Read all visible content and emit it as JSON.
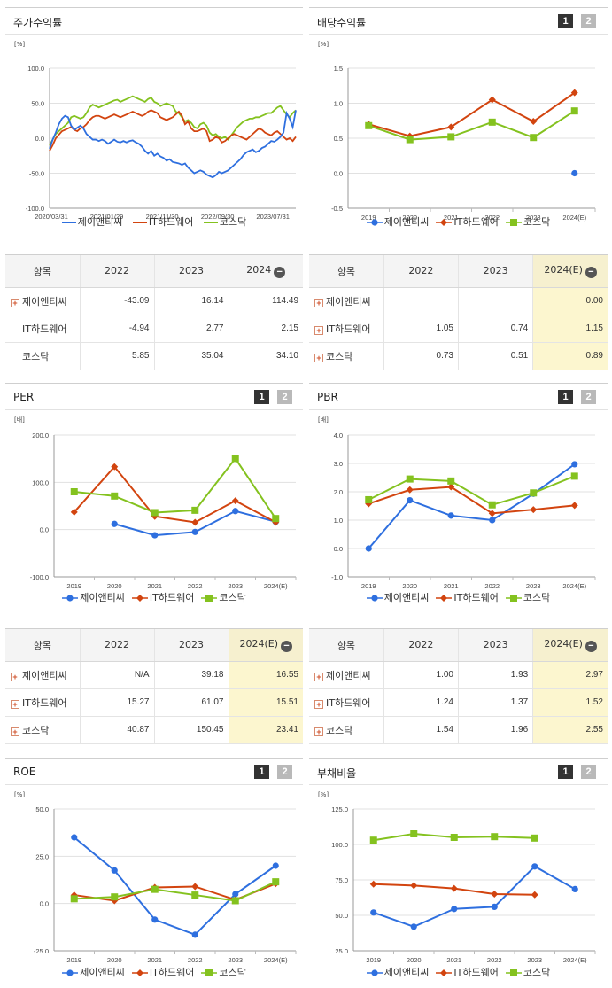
{
  "ui": {
    "page1": "1",
    "page2": "2",
    "minus": "−",
    "plus": "+"
  },
  "legend": {
    "a": "제이앤티씨",
    "b": "IT하드웨어",
    "c": "코스닥"
  },
  "colors": {
    "a": "#2e6fdf",
    "b": "#d2440f",
    "c": "#84c21f"
  },
  "charts": {
    "stock": {
      "title": "주가수익률",
      "chart_data": {
        "type": "line",
        "title": "주가수익률",
        "ylabel": "[%]",
        "ylim": [
          -100,
          100
        ],
        "yticks": [
          "100.0",
          "50.0",
          "0.0",
          "-50.0",
          "-100.0"
        ],
        "xticks": [
          "2020/03/31",
          "2021/01/29",
          "2021/11/30",
          "2022/09/30",
          "2023/07/31"
        ],
        "x": [
          0,
          1,
          2,
          3,
          4,
          5,
          6,
          7,
          8,
          9,
          10,
          11,
          12,
          13,
          14,
          15,
          16,
          17,
          18,
          19,
          20,
          21,
          22,
          23,
          24,
          25,
          26,
          27,
          28,
          29,
          30,
          31,
          32,
          33,
          34,
          35,
          36,
          37,
          38,
          39,
          40,
          41,
          42,
          43,
          44,
          45,
          46,
          47,
          48,
          49,
          50,
          51,
          52,
          53,
          54,
          55,
          56,
          57,
          58,
          59,
          60,
          61,
          62,
          63,
          64,
          65,
          66,
          67,
          68,
          69,
          70,
          71,
          72,
          73,
          74,
          75,
          76,
          77,
          78,
          79,
          80
        ],
        "series": [
          {
            "name": "제이앤티씨",
            "values": [
              -15,
              -2,
              8,
              20,
              28,
              32,
              30,
              18,
              12,
              15,
              18,
              14,
              6,
              2,
              -2,
              -2,
              -4,
              -2,
              -4,
              -8,
              -5,
              -2,
              -5,
              -6,
              -4,
              -6,
              -4,
              -3,
              -6,
              -8,
              -12,
              -18,
              -22,
              -18,
              -25,
              -22,
              -26,
              -28,
              -32,
              -30,
              -34,
              -35,
              -36,
              -38,
              -36,
              -42,
              -46,
              -50,
              -48,
              -46,
              -48,
              -52,
              -54,
              -56,
              -53,
              -48,
              -50,
              -48,
              -46,
              -42,
              -38,
              -34,
              -30,
              -24,
              -20,
              -18,
              -16,
              -20,
              -18,
              -14,
              -12,
              -8,
              -4,
              -5,
              -2,
              2,
              8,
              36,
              28,
              16,
              40
            ]
          },
          {
            "name": "IT하드웨어",
            "values": [
              -18,
              -10,
              0,
              5,
              10,
              12,
              14,
              16,
              12,
              10,
              14,
              16,
              20,
              26,
              30,
              32,
              32,
              30,
              28,
              30,
              32,
              34,
              32,
              30,
              32,
              34,
              36,
              38,
              36,
              34,
              32,
              34,
              38,
              40,
              38,
              36,
              30,
              28,
              26,
              28,
              30,
              34,
              38,
              32,
              20,
              24,
              14,
              10,
              10,
              12,
              14,
              10,
              -4,
              -2,
              2,
              0,
              -6,
              -4,
              0,
              4,
              6,
              4,
              2,
              0,
              -2,
              2,
              6,
              10,
              14,
              12,
              8,
              6,
              4,
              8,
              10,
              6,
              2,
              -2,
              0,
              -4,
              2
            ]
          },
          {
            "name": "코스닥",
            "values": [
              -10,
              -2,
              6,
              10,
              14,
              18,
              22,
              30,
              32,
              30,
              28,
              30,
              36,
              44,
              48,
              46,
              44,
              46,
              48,
              50,
              52,
              54,
              55,
              52,
              54,
              56,
              58,
              60,
              58,
              56,
              54,
              52,
              56,
              58,
              52,
              50,
              46,
              48,
              50,
              48,
              46,
              38,
              36,
              30,
              24,
              26,
              22,
              16,
              14,
              20,
              22,
              18,
              8,
              4,
              6,
              2,
              0,
              2,
              -2,
              4,
              10,
              16,
              20,
              24,
              26,
              28,
              28,
              30,
              30,
              32,
              34,
              36,
              36,
              40,
              44,
              46,
              40,
              34,
              30,
              36,
              40
            ]
          }
        ]
      }
    },
    "div": {
      "title": "배당수익률",
      "chart_data": {
        "type": "line",
        "title": "배당수익률",
        "ylabel": "[%]",
        "ylim": [
          -0.5,
          1.5
        ],
        "yticks": [
          "1.5",
          "1.0",
          "0.5",
          "0.0",
          "-0.5"
        ],
        "categories": [
          "2019",
          "2020",
          "2021",
          "2022",
          "2023",
          "2024(E)"
        ],
        "series": [
          {
            "name": "제이앤티씨",
            "values": [
              null,
              null,
              null,
              null,
              null,
              0.0
            ]
          },
          {
            "name": "IT하드웨어",
            "values": [
              0.7,
              0.53,
              0.66,
              1.05,
              0.74,
              1.15
            ]
          },
          {
            "name": "코스닥",
            "values": [
              0.68,
              0.48,
              0.52,
              0.73,
              0.51,
              0.89
            ]
          }
        ]
      }
    },
    "per": {
      "title": "PER",
      "chart_data": {
        "type": "line",
        "title": "PER",
        "ylabel": "[배]",
        "ylim": [
          -100,
          200
        ],
        "yticks": [
          "200.0",
          "100.0",
          "0.0",
          "-100.0"
        ],
        "categories": [
          "2019",
          "2020",
          "2021",
          "2022",
          "2023",
          "2024(E)"
        ],
        "series": [
          {
            "name": "제이앤티씨",
            "values": [
              null,
              12,
              -12,
              -5,
              39.18,
              16.55
            ]
          },
          {
            "name": "IT하드웨어",
            "values": [
              37,
              133,
              28,
              15.27,
              61.07,
              15.51
            ]
          },
          {
            "name": "코스닥",
            "values": [
              80,
              71,
              36,
              40.87,
              150.45,
              23.41
            ]
          }
        ]
      }
    },
    "pbr": {
      "title": "PBR",
      "chart_data": {
        "type": "line",
        "title": "PBR",
        "ylabel": "[배]",
        "ylim": [
          -1,
          4
        ],
        "yticks": [
          "4.0",
          "3.0",
          "2.0",
          "1.0",
          "0.0",
          "-1.0"
        ],
        "categories": [
          "2019",
          "2020",
          "2021",
          "2022",
          "2023",
          "2024(E)"
        ],
        "series": [
          {
            "name": "제이앤티씨",
            "values": [
              0.0,
              1.7,
              1.16,
              1.0,
              1.93,
              2.97
            ]
          },
          {
            "name": "IT하드웨어",
            "values": [
              1.58,
              2.07,
              2.17,
              1.24,
              1.37,
              1.52
            ]
          },
          {
            "name": "코스닥",
            "values": [
              1.72,
              2.45,
              2.38,
              1.54,
              1.96,
              2.55
            ]
          }
        ]
      }
    },
    "roe": {
      "title": "ROE",
      "chart_data": {
        "type": "line",
        "title": "ROE",
        "ylabel": "[%]",
        "ylim": [
          -25,
          50
        ],
        "yticks": [
          "50.0",
          "25.0",
          "0.0",
          "-25.0"
        ],
        "categories": [
          "2019",
          "2020",
          "2021",
          "2022",
          "2023",
          "2024(E)"
        ],
        "series": [
          {
            "name": "제이앤티씨",
            "values": [
              35,
              17.5,
              -8.5,
              -16.5,
              5,
              20
            ]
          },
          {
            "name": "IT하드웨어",
            "values": [
              4.5,
              1.5,
              8.5,
              9,
              2,
              10.5
            ]
          },
          {
            "name": "코스닥",
            "values": [
              2.5,
              3.5,
              7.5,
              4.5,
              1.5,
              11.5
            ]
          }
        ]
      }
    },
    "debt": {
      "title": "부채비율",
      "chart_data": {
        "type": "line",
        "title": "부채비율",
        "ylabel": "[%]",
        "ylim": [
          25,
          125
        ],
        "yticks": [
          "125.0",
          "100.0",
          "75.0",
          "50.0",
          "25.0"
        ],
        "categories": [
          "2019",
          "2020",
          "2021",
          "2022",
          "2023",
          "2024(E)"
        ],
        "series": [
          {
            "name": "제이앤티씨",
            "values": [
              52,
              42,
              54.5,
              56,
              84.5,
              68.5
            ]
          },
          {
            "name": "IT하드웨어",
            "values": [
              72,
              71,
              69,
              65,
              64.5,
              null
            ]
          },
          {
            "name": "코스닥",
            "values": [
              103,
              107.5,
              105,
              105.5,
              104.5,
              null
            ]
          }
        ]
      }
    }
  },
  "tables": {
    "stock": {
      "header": [
        "항목",
        "2022",
        "2023",
        "2024"
      ],
      "rows": [
        {
          "label": "제이앤티씨",
          "plus": true,
          "values": [
            "-43.09",
            "16.14",
            "114.49"
          ]
        },
        {
          "label": "IT하드웨어",
          "plus": false,
          "values": [
            "-4.94",
            "2.77",
            "2.15"
          ]
        },
        {
          "label": "코스닥",
          "plus": false,
          "values": [
            "5.85",
            "35.04",
            "34.10"
          ]
        }
      ]
    },
    "div": {
      "header": [
        "항목",
        "2022",
        "2023",
        "2024(E)"
      ],
      "rows": [
        {
          "label": "제이앤티씨",
          "plus": true,
          "values": [
            "",
            "",
            "0.00"
          ]
        },
        {
          "label": "IT하드웨어",
          "plus": true,
          "values": [
            "1.05",
            "0.74",
            "1.15"
          ]
        },
        {
          "label": "코스닥",
          "plus": true,
          "values": [
            "0.73",
            "0.51",
            "0.89"
          ]
        }
      ]
    },
    "per": {
      "header": [
        "항목",
        "2022",
        "2023",
        "2024(E)"
      ],
      "rows": [
        {
          "label": "제이앤티씨",
          "plus": true,
          "values": [
            "N/A",
            "39.18",
            "16.55"
          ]
        },
        {
          "label": "IT하드웨어",
          "plus": true,
          "values": [
            "15.27",
            "61.07",
            "15.51"
          ]
        },
        {
          "label": "코스닥",
          "plus": true,
          "values": [
            "40.87",
            "150.45",
            "23.41"
          ]
        }
      ]
    },
    "pbr": {
      "header": [
        "항목",
        "2022",
        "2023",
        "2024(E)"
      ],
      "rows": [
        {
          "label": "제이앤티씨",
          "plus": true,
          "values": [
            "1.00",
            "1.93",
            "2.97"
          ]
        },
        {
          "label": "IT하드웨어",
          "plus": true,
          "values": [
            "1.24",
            "1.37",
            "1.52"
          ]
        },
        {
          "label": "코스닥",
          "plus": true,
          "values": [
            "1.54",
            "1.96",
            "2.55"
          ]
        }
      ]
    }
  }
}
